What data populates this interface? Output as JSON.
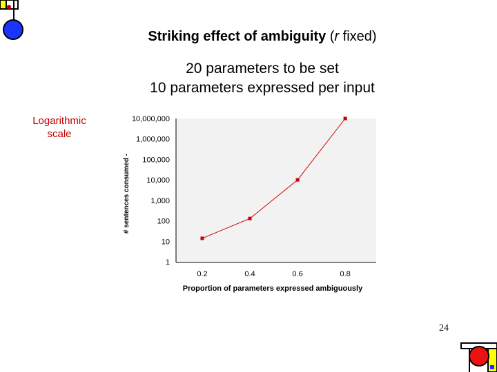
{
  "slide": {
    "title_bold": "Striking effect of ambiguity",
    "title_paren_open": "(",
    "title_var": "r",
    "title_rest": " fixed)",
    "line1": "20 parameters to be set",
    "line2": "10 parameters expressed per input",
    "annotation_line1": "Logarithmic",
    "annotation_line2": "scale",
    "page_number": "24"
  },
  "colors": {
    "accent_red": "#cc0000",
    "plot_bg": "#f2f2f2",
    "corner_blue": "#1a33ff",
    "corner_yellow": "#ffff00"
  },
  "chart_data": {
    "type": "line",
    "title": "",
    "xlabel": "Proportion of parameters expressed ambiguously",
    "ylabel": "# sentences consumed -",
    "yscale": "log",
    "x": [
      0.2,
      0.4,
      0.6,
      0.8
    ],
    "x_tick_labels": [
      "0.2",
      "0.4",
      "0.6",
      "0.8"
    ],
    "y_tick_labels": [
      "1",
      "10",
      "100",
      "1,000",
      "10,000",
      "100,000",
      "1,000,000",
      "10,000,000"
    ],
    "ylim": [
      1,
      10000000
    ],
    "series": [
      {
        "values": [
          14,
          130,
          10000,
          10000000
        ],
        "color": "#cc0000"
      }
    ],
    "grid": false
  }
}
